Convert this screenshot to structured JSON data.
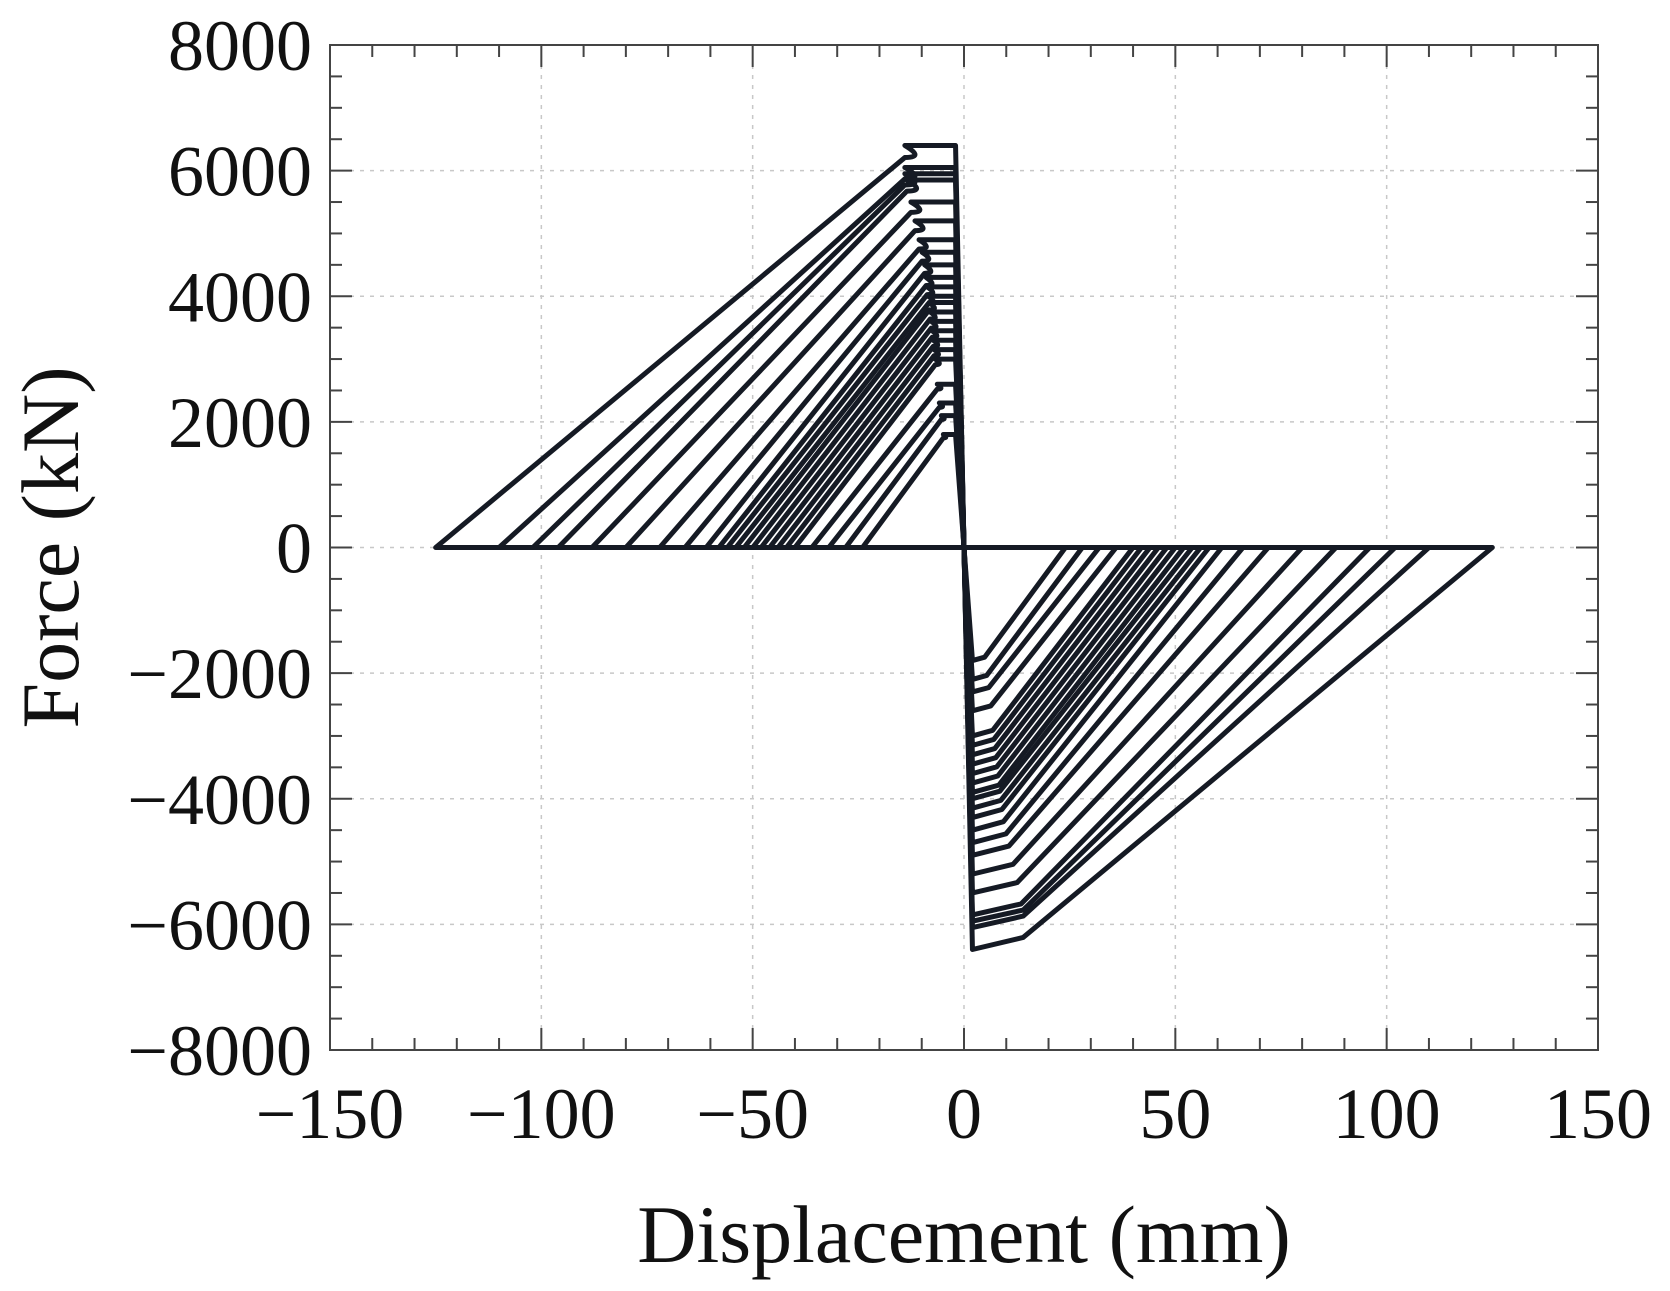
{
  "chart_data": {
    "type": "line",
    "xlabel": "Displacement (mm)",
    "ylabel": "Force (kN)",
    "xlim": [
      -150,
      150
    ],
    "ylim": [
      -8000,
      8000
    ],
    "xticks": [
      -150,
      -100,
      -50,
      0,
      50,
      100,
      150
    ],
    "yticks": [
      8000,
      6000,
      4000,
      2000,
      0,
      -2000,
      -4000,
      -6000,
      -8000
    ],
    "xtick_labels": [
      "−150",
      "−100",
      "−50",
      "0",
      "50",
      "100",
      "150"
    ],
    "ytick_labels": [
      "8000",
      "6000",
      "4000",
      "2000",
      "0",
      "−2000",
      "−4000",
      "−6000",
      "−8000"
    ],
    "grid": true,
    "line_color": "#151a24",
    "grid_color": "#c8c8c8",
    "series": [
      {
        "cycles": [
          {
            "dmax": 125,
            "fmax": 6400
          },
          {
            "dmax": 110,
            "fmax": 6050
          },
          {
            "dmax": 102,
            "fmax": 5950
          },
          {
            "dmax": 96,
            "fmax": 5850
          },
          {
            "dmax": 88,
            "fmax": 5500
          },
          {
            "dmax": 80,
            "fmax": 5200
          },
          {
            "dmax": 72,
            "fmax": 4900
          },
          {
            "dmax": 66,
            "fmax": 4700
          },
          {
            "dmax": 61,
            "fmax": 4500
          },
          {
            "dmax": 58,
            "fmax": 4300
          },
          {
            "dmax": 56,
            "fmax": 4150
          },
          {
            "dmax": 54,
            "fmax": 4000
          },
          {
            "dmax": 52,
            "fmax": 3900
          },
          {
            "dmax": 50,
            "fmax": 3750
          },
          {
            "dmax": 48,
            "fmax": 3600
          },
          {
            "dmax": 46,
            "fmax": 3450
          },
          {
            "dmax": 44,
            "fmax": 3300
          },
          {
            "dmax": 42,
            "fmax": 3150
          },
          {
            "dmax": 40,
            "fmax": 3000
          },
          {
            "dmax": 36,
            "fmax": 2600
          },
          {
            "dmax": 32,
            "fmax": 2300
          },
          {
            "dmax": 28,
            "fmax": 2100
          },
          {
            "dmax": 24,
            "fmax": 1800
          }
        ]
      }
    ]
  }
}
